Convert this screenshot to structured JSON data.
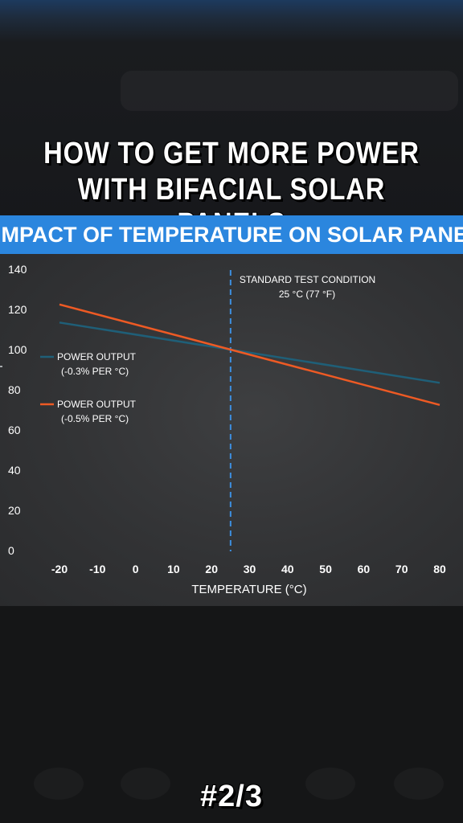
{
  "headline": {
    "line1": "HOW TO GET MORE POWER",
    "line2": "WITH BIFACIAL SOLAR PANELS"
  },
  "banner": {
    "text": "IMPACT OF TEMPERATURE ON SOLAR PANELS"
  },
  "page_indicator": "#2/3",
  "colors": {
    "banner": "#2b86de",
    "series_low": "#1f5f78",
    "series_high": "#ee5a24",
    "reference_line": "#3d8fe0"
  },
  "chart_data": {
    "type": "line",
    "title": "IMPACT OF TEMPERATURE ON SOLAR PANELS",
    "xlabel": "TEMPERATURE (°C)",
    "ylabel": "",
    "xlim": [
      -25,
      85
    ],
    "ylim": [
      0,
      140
    ],
    "x_ticks": [
      -20,
      -10,
      0,
      10,
      20,
      30,
      40,
      50,
      60,
      70,
      80
    ],
    "y_ticks": [
      0,
      20,
      40,
      60,
      80,
      100,
      120,
      140
    ],
    "grid": false,
    "legend_position": "left",
    "series": [
      {
        "name": "POWER OUTPUT",
        "name_sub": "(-0.3% PER °C)",
        "color": "#1f5f78",
        "x": [
          -20,
          25,
          80
        ],
        "y": [
          113.5,
          100,
          83.5
        ]
      },
      {
        "name": "POWER OUTPUT",
        "name_sub": "(-0.5% PER °C)",
        "color": "#ee5a24",
        "x": [
          -20,
          25,
          80
        ],
        "y": [
          122.5,
          100,
          72.5
        ]
      }
    ],
    "reference_line": {
      "x": 25,
      "label_line1": "STANDARD TEST CONDITION",
      "label_line2": "25 °C (77 °F)"
    }
  }
}
